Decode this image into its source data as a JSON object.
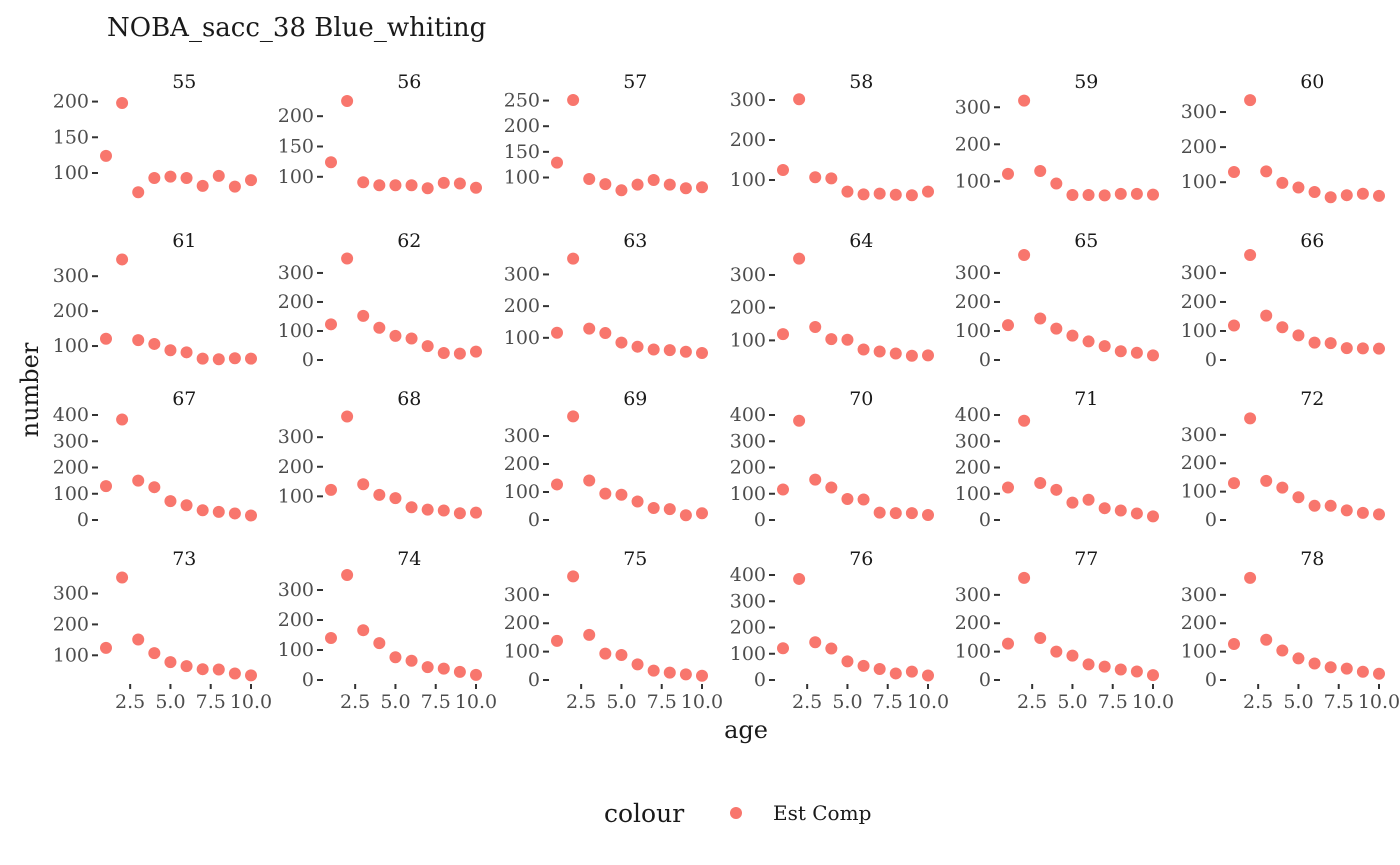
{
  "chart_data": {
    "type": "scatter",
    "title": "NOBA_sacc_38 Blue_whiting",
    "xlabel": "age",
    "ylabel": "number",
    "x": [
      1,
      2,
      3,
      4,
      5,
      6,
      7,
      8,
      9,
      10
    ],
    "x_ticks": [
      2.5,
      5.0,
      7.5,
      10.0
    ],
    "x_tick_labels": [
      "2.5",
      "5.0",
      "7.5",
      "10.0"
    ],
    "xlim": [
      1,
      10
    ],
    "grid": false,
    "legend": {
      "title": "colour",
      "position": "bottom",
      "entries": [
        {
          "label": "Est Comp",
          "color": "#F8766D"
        }
      ]
    },
    "point_color": "#F8766D",
    "rows": [
      {
        "ylim": [
          65,
          205
        ],
        "y_ticks": [
          100,
          150,
          200
        ],
        "panels": [
          {
            "label": "55",
            "ylim": [
              65,
              205
            ],
            "y_ticks": [
              100,
              150,
              200
            ],
            "values": [
              124,
              198,
              73,
              93,
              95,
              93,
              82,
              96,
              81,
              90
            ]
          },
          {
            "label": "56",
            "ylim": [
              65,
              230
            ],
            "y_ticks": [
              100,
              150,
              200
            ],
            "values": [
              124,
              225,
              91,
              86,
              86,
              86,
              81,
              90,
              89,
              82
            ]
          },
          {
            "label": "57",
            "ylim": [
              60,
              255
            ],
            "y_ticks": [
              100,
              150,
              200,
              250
            ],
            "values": [
              129,
              251,
              97,
              87,
              75,
              86,
              95,
              86,
              79,
              81
            ]
          },
          {
            "label": "58",
            "ylim": [
              55,
              305
            ],
            "y_ticks": [
              100,
              200,
              300
            ],
            "values": [
              125,
              302,
              107,
              104,
              71,
              64,
              66,
              63,
              62,
              71
            ]
          },
          {
            "label": "59",
            "ylim": [
              55,
              325
            ],
            "y_ticks": [
              100,
              200,
              300
            ],
            "values": [
              120,
              318,
              128,
              94,
              63,
              63,
              62,
              66,
              66,
              64
            ]
          },
          {
            "label": "60",
            "ylim": [
              55,
              340
            ],
            "y_ticks": [
              100,
              200,
              300
            ],
            "values": [
              129,
              334,
              131,
              98,
              85,
              72,
              57,
              63,
              67,
              61
            ]
          }
        ]
      },
      {
        "panels": [
          {
            "label": "61",
            "ylim": [
              60,
              355
            ],
            "y_ticks": [
              100,
              200,
              300
            ],
            "values": [
              121,
              348,
              117,
              106,
              88,
              82,
              64,
              62,
              65,
              64
            ]
          },
          {
            "label": "62",
            "ylim": [
              0,
              355
            ],
            "y_ticks": [
              0,
              100,
              200,
              300
            ],
            "values": [
              123,
              350,
              152,
              111,
              83,
              74,
              48,
              24,
              22,
              29
            ]
          },
          {
            "label": "63",
            "ylim": [
              30,
              355
            ],
            "y_ticks": [
              100,
              200,
              300
            ],
            "values": [
              116,
              350,
              129,
              115,
              85,
              72,
              63,
              61,
              56,
              52
            ]
          },
          {
            "label": "64",
            "ylim": [
              40,
              355
            ],
            "y_ticks": [
              100,
              200,
              300
            ],
            "values": [
              119,
              350,
              141,
              104,
              102,
              72,
              66,
              60,
              53,
              54
            ]
          },
          {
            "label": "65",
            "ylim": [
              0,
              355
            ],
            "y_ticks": [
              0,
              100,
              200,
              300
            ],
            "values": [
              120,
              362,
              143,
              108,
              84,
              64,
              48,
              30,
              25,
              16
            ]
          },
          {
            "label": "66",
            "ylim": [
              0,
              355
            ],
            "y_ticks": [
              0,
              100,
              200,
              300
            ],
            "values": [
              119,
              362,
              153,
              113,
              85,
              60,
              58,
              41,
              40,
              39
            ]
          }
        ]
      },
      {
        "panels": [
          {
            "label": "67",
            "ylim": [
              0,
              400
            ],
            "y_ticks": [
              0,
              100,
              200,
              300,
              400
            ],
            "values": [
              129,
              383,
              150,
              125,
              72,
              56,
              37,
              31,
              25,
              17
            ]
          },
          {
            "label": "68",
            "ylim": [
              20,
              375
            ],
            "y_ticks": [
              100,
              200,
              300
            ],
            "values": [
              122,
              370,
              141,
              105,
              94,
              63,
              55,
              52,
              43,
              45
            ]
          },
          {
            "label": "69",
            "ylim": [
              0,
              375
            ],
            "y_ticks": [
              0,
              100,
              200,
              300
            ],
            "values": [
              127,
              370,
              141,
              94,
              90,
              66,
              43,
              39,
              17,
              24
            ]
          },
          {
            "label": "70",
            "ylim": [
              0,
              400
            ],
            "y_ticks": [
              0,
              100,
              200,
              300,
              400
            ],
            "values": [
              116,
              378,
              154,
              124,
              80,
              78,
              28,
              26,
              26,
              19
            ]
          },
          {
            "label": "71",
            "ylim": [
              0,
              400
            ],
            "y_ticks": [
              0,
              100,
              200,
              300,
              400
            ],
            "values": [
              124,
              378,
              141,
              115,
              66,
              77,
              45,
              36,
              25,
              14
            ]
          },
          {
            "label": "72",
            "ylim": [
              0,
              370
            ],
            "y_ticks": [
              0,
              100,
              200,
              300
            ],
            "values": [
              130,
              358,
              138,
              114,
              80,
              50,
              50,
              34,
              25,
              20
            ]
          }
        ]
      },
      {
        "panels": [
          {
            "label": "73",
            "ylim": [
              20,
              360
            ],
            "y_ticks": [
              100,
              200,
              300
            ],
            "values": [
              124,
              352,
              151,
              107,
              78,
              65,
              55,
              54,
              41,
              35
            ]
          },
          {
            "label": "74",
            "ylim": [
              0,
              350
            ],
            "y_ticks": [
              0,
              100,
              200,
              300
            ],
            "values": [
              140,
              350,
              166,
              123,
              76,
              64,
              43,
              38,
              27,
              17
            ]
          },
          {
            "label": "75",
            "ylim": [
              0,
              370
            ],
            "y_ticks": [
              0,
              100,
              200,
              300
            ],
            "values": [
              138,
              365,
              159,
              93,
              88,
              55,
              33,
              26,
              20,
              15
            ]
          },
          {
            "label": "76",
            "ylim": [
              0,
              400
            ],
            "y_ticks": [
              0,
              100,
              200,
              300,
              400
            ],
            "values": [
              121,
              385,
              144,
              120,
              71,
              54,
              42,
              25,
              32,
              17
            ]
          },
          {
            "label": "77",
            "ylim": [
              0,
              370
            ],
            "y_ticks": [
              0,
              100,
              200,
              300
            ],
            "values": [
              128,
              360,
              148,
              100,
              86,
              55,
              47,
              37,
              30,
              17
            ]
          },
          {
            "label": "78",
            "ylim": [
              0,
              370
            ],
            "y_ticks": [
              0,
              100,
              200,
              300
            ],
            "values": [
              127,
              360,
              142,
              104,
              76,
              58,
              45,
              40,
              29,
              22
            ]
          }
        ]
      }
    ]
  }
}
